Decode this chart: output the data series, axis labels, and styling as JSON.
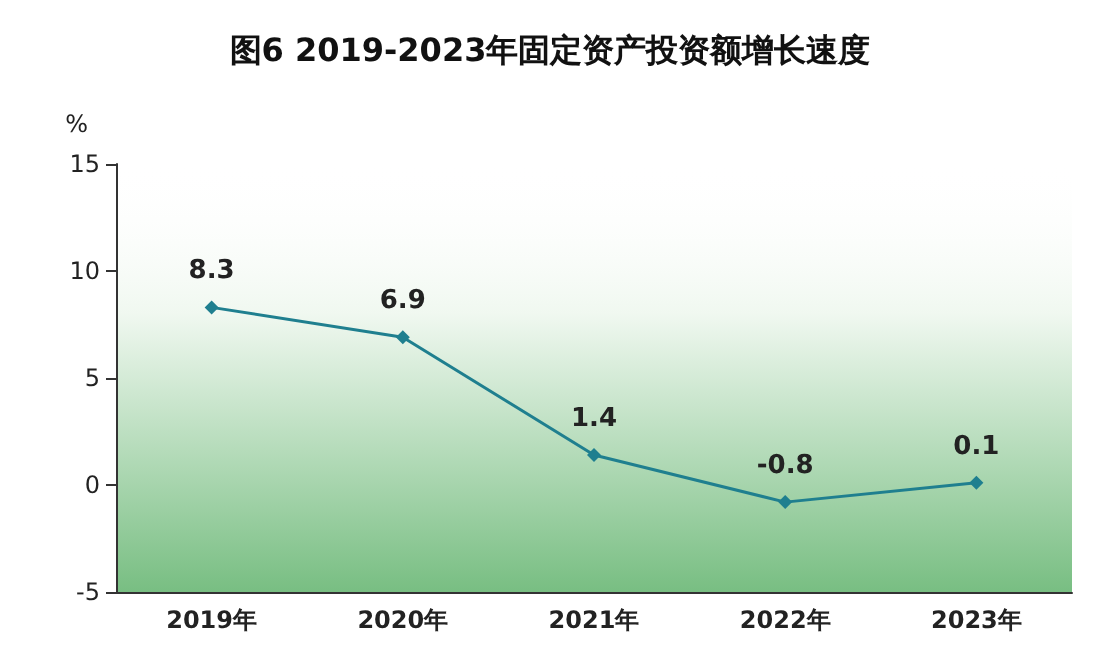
{
  "chart_data": {
    "type": "line",
    "title": "图6 2019-2023年固定资产投资额增长速度",
    "ylabel": "%",
    "categories": [
      "2019年",
      "2020年",
      "2021年",
      "2022年",
      "2023年"
    ],
    "values": [
      8.3,
      6.9,
      1.4,
      -0.8,
      0.1
    ],
    "color": "#1f7f8f",
    "ylim": [
      -5,
      15
    ],
    "yticks": [
      -5,
      0,
      5,
      10,
      15
    ],
    "grid": false,
    "marker": "diamond",
    "line_style": "solid",
    "data_labels": true
  }
}
